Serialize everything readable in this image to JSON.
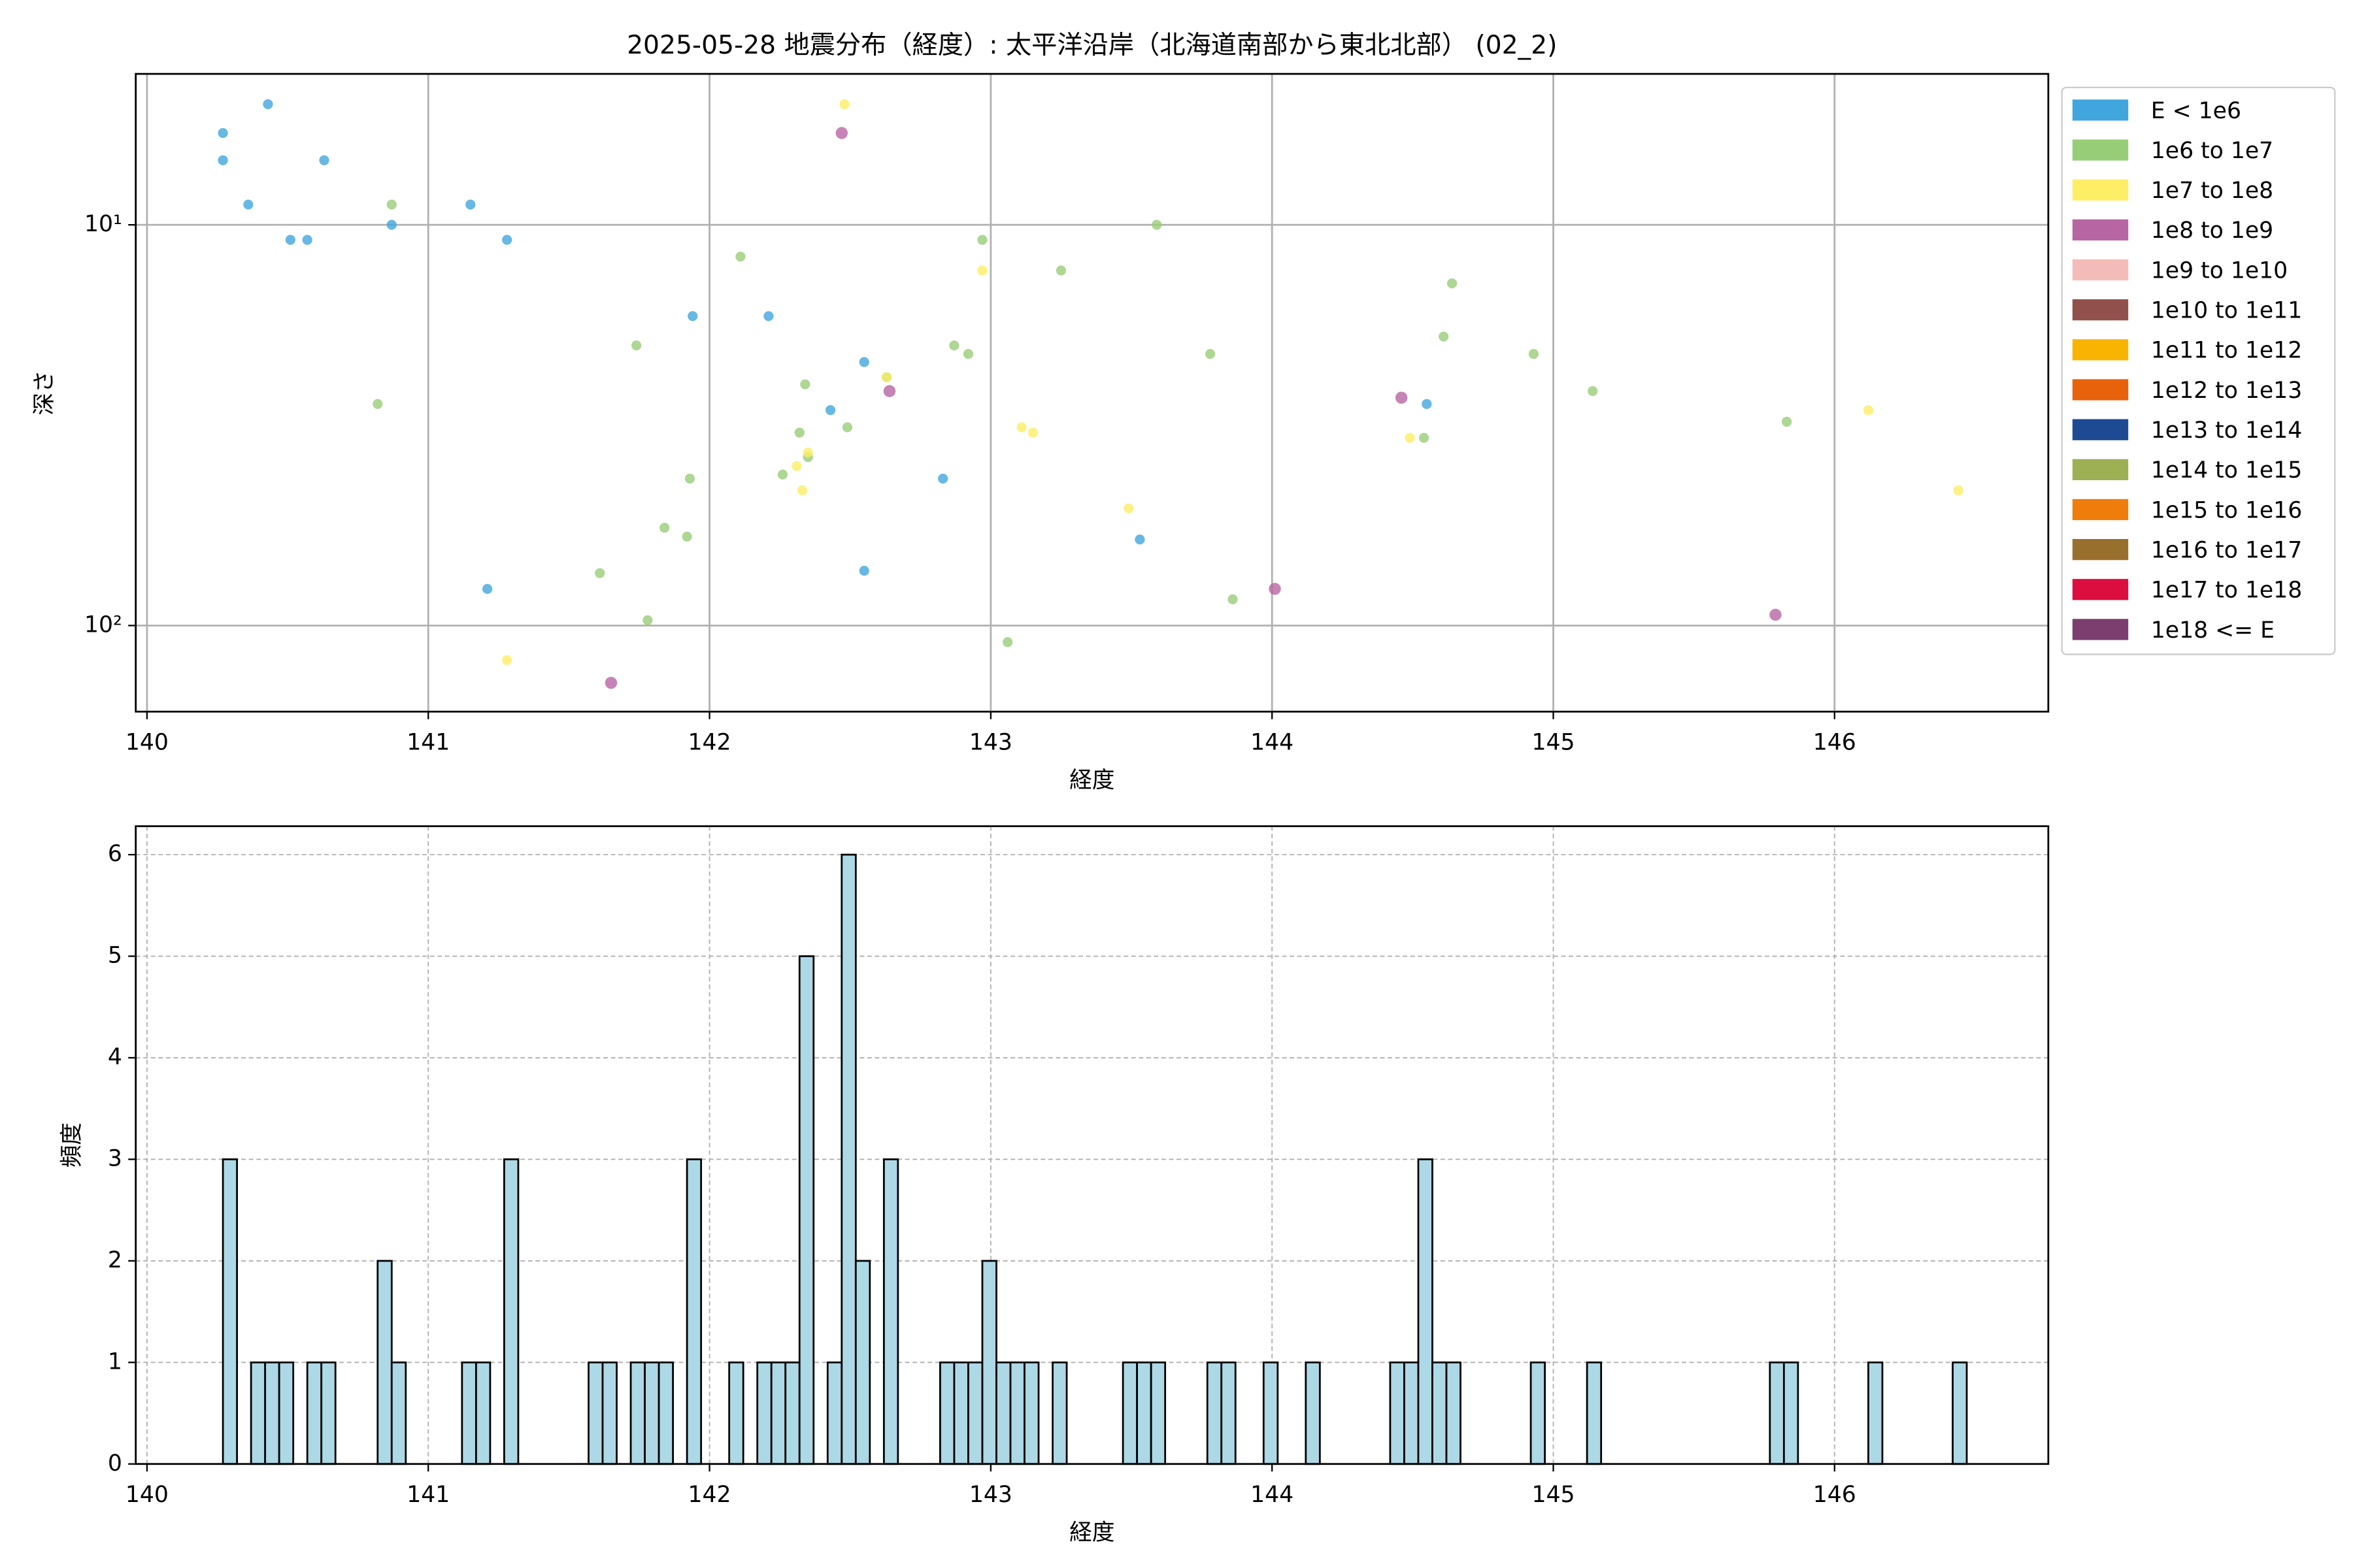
{
  "chart_data": [
    {
      "type": "scatter",
      "title": "2025-05-28 地震分布（経度）: 太平洋沿岸（北海道南部から東北北部） (02_2)",
      "xlabel": "経度",
      "ylabel": "深さ",
      "xlim": [
        139.96,
        146.76
      ],
      "xticks": [
        140,
        141,
        142,
        143,
        144,
        145,
        146
      ],
      "ylim": [
        4.2,
        164
      ],
      "yscale": "log",
      "y_inverted": true,
      "yticks": [
        {
          "value": 10,
          "label": "10¹"
        },
        {
          "value": 100,
          "label": "10²"
        }
      ],
      "grid": true,
      "legend": "outside right",
      "series": [
        {
          "name": "E < 1e6",
          "color": "#41a6dd",
          "x": [
            140.27,
            140.27,
            140.43,
            140.36,
            140.51,
            140.57,
            140.63,
            140.87,
            141.15,
            141.28,
            141.21,
            141.94,
            142.21,
            142.55,
            142.43,
            142.83,
            142.55,
            143.53,
            144.55
          ],
          "values": [
            5.9,
            6.9,
            5.0,
            8.9,
            10.9,
            10.9,
            6.9,
            10.0,
            8.9,
            10.9,
            81,
            16.9,
            16.9,
            22,
            29,
            43,
            73,
            61,
            28
          ]
        },
        {
          "name": "1e6 to 1e7",
          "color": "#98cd78",
          "x": [
            140.87,
            140.82,
            141.61,
            141.78,
            141.74,
            141.84,
            141.92,
            141.93,
            142.11,
            142.26,
            142.32,
            142.34,
            142.35,
            142.49,
            142.63,
            142.87,
            142.92,
            142.97,
            143.06,
            143.25,
            143.59,
            143.78,
            143.86,
            144.61,
            144.64,
            144.54,
            144.93,
            145.14,
            145.83
          ],
          "values": [
            8.9,
            28,
            74,
            97,
            20,
            57,
            60,
            43,
            12,
            42,
            33,
            25,
            38,
            32,
            24,
            20,
            21,
            10.9,
            110,
            13,
            10,
            21,
            86,
            19,
            14,
            34,
            21,
            26,
            31
          ]
        },
        {
          "name": "1e7 to 1e8",
          "color": "#fdee65",
          "x": [
            142.48,
            142.97,
            142.31,
            142.35,
            142.33,
            141.28,
            142.63,
            143.11,
            143.15,
            143.49,
            144.49,
            146.12,
            146.44
          ],
          "values": [
            5.0,
            13,
            40,
            37,
            46,
            122,
            24,
            32,
            33,
            51,
            34,
            29,
            46
          ]
        },
        {
          "name": "1e8 to 1e9",
          "color": "#b865a4",
          "x": [
            142.47,
            142.64,
            141.65,
            144.01,
            144.46,
            145.79
          ],
          "values": [
            5.9,
            26,
            139,
            81,
            27,
            94
          ]
        },
        {
          "name": "1e9 to 1e10",
          "color": "#f4bcb9",
          "x": [],
          "values": []
        },
        {
          "name": "1e10 to 1e11",
          "color": "#92504c",
          "x": [],
          "values": []
        },
        {
          "name": "1e11 to 1e12",
          "color": "#f8b400",
          "x": [],
          "values": []
        },
        {
          "name": "1e12 to 1e13",
          "color": "#e8620c",
          "x": [],
          "values": []
        },
        {
          "name": "1e13 to 1e14",
          "color": "#1e4a94",
          "x": [],
          "values": []
        },
        {
          "name": "1e14 to 1e15",
          "color": "#9db054",
          "x": [],
          "values": []
        },
        {
          "name": "1e15 to 1e16",
          "color": "#ee7d0c",
          "x": [],
          "values": []
        },
        {
          "name": "1e16 to 1e17",
          "color": "#996f2e",
          "x": [],
          "values": []
        },
        {
          "name": "1e17 to 1e18",
          "color": "#dc0e40",
          "x": [],
          "values": []
        },
        {
          "name": "1e18 <= E",
          "color": "#7b3e6f",
          "x": [],
          "values": []
        }
      ]
    },
    {
      "type": "histogram",
      "xlabel": "経度",
      "ylabel": "頻度",
      "xlim": [
        139.96,
        146.76
      ],
      "xticks": [
        140,
        141,
        142,
        143,
        144,
        145,
        146
      ],
      "ylim": [
        0,
        6.28
      ],
      "yticks": [
        0,
        1,
        2,
        3,
        4,
        5,
        6
      ],
      "grid": true,
      "color": "#add8e6",
      "bins": [
        140.27,
        140.32,
        140.37,
        140.42,
        140.47,
        140.52,
        140.57,
        140.62,
        140.67,
        140.72,
        140.77,
        140.82,
        140.87,
        140.92,
        140.97,
        141.02,
        141.07,
        141.12,
        141.17,
        141.22,
        141.27,
        141.32,
        141.37,
        141.42,
        141.47,
        141.52,
        141.57,
        141.62,
        141.67,
        141.72,
        141.77,
        141.82,
        141.87,
        141.92,
        141.97,
        142.02,
        142.07,
        142.12,
        142.17,
        142.22,
        142.27,
        142.32,
        142.37,
        142.42,
        142.47,
        142.52,
        142.57,
        142.62,
        142.67,
        142.72,
        142.77,
        142.82,
        142.87,
        142.92,
        142.97,
        143.02,
        143.07,
        143.12,
        143.17,
        143.22,
        143.27,
        143.32,
        143.37,
        143.42,
        143.47,
        143.52,
        143.57,
        143.62,
        143.67,
        143.72,
        143.77,
        143.82,
        143.87,
        143.92,
        143.97,
        144.02,
        144.07,
        144.12,
        144.17,
        144.22,
        144.27,
        144.32,
        144.37,
        144.42,
        144.47,
        144.52,
        144.57,
        144.62,
        144.67,
        144.72,
        144.77,
        144.82,
        144.87,
        144.92,
        144.97,
        145.02,
        145.07,
        145.12,
        145.17,
        145.22,
        145.27,
        145.32,
        145.37,
        145.42,
        145.47,
        145.52,
        145.57,
        145.62,
        145.67,
        145.72,
        145.77,
        145.82,
        145.87,
        145.92,
        145.97,
        146.02,
        146.07,
        146.12,
        146.17,
        146.22,
        146.27,
        146.32,
        146.37,
        146.42,
        146.47
      ],
      "values": [
        3,
        0,
        1,
        1,
        1,
        0,
        1,
        1,
        0,
        0,
        0,
        2,
        1,
        0,
        0,
        0,
        0,
        1,
        1,
        0,
        3,
        0,
        0,
        0,
        0,
        0,
        1,
        1,
        0,
        1,
        1,
        1,
        0,
        3,
        0,
        0,
        1,
        0,
        1,
        1,
        1,
        5,
        0,
        1,
        6,
        2,
        0,
        3,
        0,
        0,
        0,
        1,
        1,
        1,
        2,
        1,
        1,
        1,
        0,
        1,
        0,
        0,
        0,
        0,
        1,
        1,
        1,
        0,
        0,
        0,
        1,
        1,
        0,
        0,
        1,
        0,
        0,
        1,
        0,
        0,
        0,
        0,
        0,
        1,
        1,
        3,
        1,
        1,
        0,
        0,
        0,
        0,
        0,
        1,
        0,
        0,
        0,
        1,
        0,
        0,
        0,
        0,
        0,
        0,
        0,
        0,
        0,
        0,
        0,
        0,
        1,
        1,
        0,
        0,
        0,
        0,
        0,
        1,
        0,
        0,
        0,
        0,
        0,
        1
      ]
    }
  ]
}
